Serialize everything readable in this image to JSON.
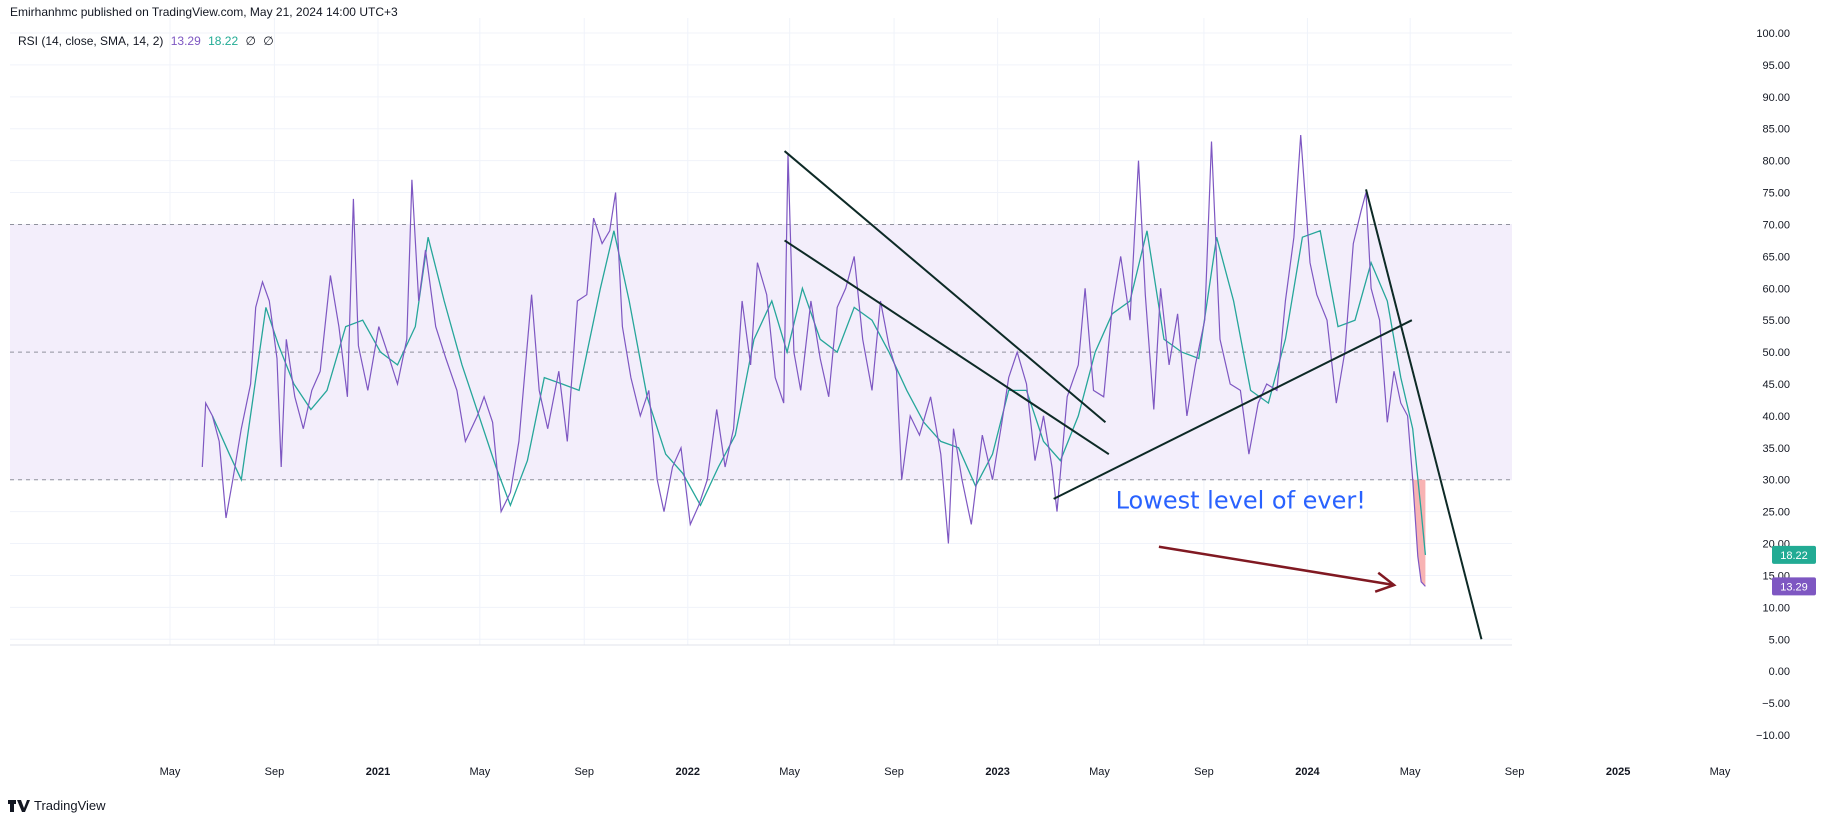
{
  "header": {
    "publisher_line": "Emirhanhmc published on TradingView.com, May 21, 2024 14:00 UTC+3"
  },
  "legend": {
    "indicator": "RSI (14, close, SMA, 14, 2)",
    "rsi_value": "13.29",
    "ma_value": "18.22",
    "extra1": "∅",
    "extra2": "∅"
  },
  "footer": {
    "brand": "TradingView"
  },
  "colors": {
    "rsi": "#7e57c2",
    "ma": "#26a69a",
    "band_fill": "#f3eefb",
    "trendline": "#0d2a26",
    "arrow": "#801922",
    "annotation": "#2962ff",
    "oversold_fill": "#f7a6a6",
    "ma_badge": "#22ab94",
    "rsi_badge": "#7e57c2"
  },
  "chart_data": {
    "type": "line",
    "title": "RSI (14, close, SMA, 14, 2)",
    "y_axis": {
      "min": -10,
      "max": 100,
      "step": 5,
      "position": "right",
      "tick_labels": [
        "100.00",
        "95.00",
        "90.00",
        "85.00",
        "80.00",
        "75.00",
        "70.00",
        "65.00",
        "60.00",
        "55.00",
        "50.00",
        "45.00",
        "40.00",
        "35.00",
        "30.00",
        "25.00",
        "20.00",
        "15.00",
        "10.00",
        "5.00",
        "0.00",
        "−5.00",
        "−10.00"
      ]
    },
    "x_axis": {
      "ticks": [
        {
          "label": "May",
          "date": "2020-05-01",
          "year": false
        },
        {
          "label": "Sep",
          "date": "2020-09-01",
          "year": false
        },
        {
          "label": "2021",
          "date": "2021-01-01",
          "year": true
        },
        {
          "label": "May",
          "date": "2021-05-01",
          "year": false
        },
        {
          "label": "Sep",
          "date": "2021-09-01",
          "year": false
        },
        {
          "label": "2022",
          "date": "2022-01-01",
          "year": true
        },
        {
          "label": "May",
          "date": "2022-05-01",
          "year": false
        },
        {
          "label": "Sep",
          "date": "2022-09-01",
          "year": false
        },
        {
          "label": "2023",
          "date": "2023-01-01",
          "year": true
        },
        {
          "label": "May",
          "date": "2023-05-01",
          "year": false
        },
        {
          "label": "Sep",
          "date": "2023-09-01",
          "year": false
        },
        {
          "label": "2024",
          "date": "2024-01-01",
          "year": true
        },
        {
          "label": "May",
          "date": "2024-05-01",
          "year": false
        },
        {
          "label": "Sep",
          "date": "2024-09-01",
          "year": false
        },
        {
          "label": "2025",
          "date": "2025-01-01",
          "year": true
        },
        {
          "label": "May",
          "date": "2025-05-01",
          "year": false
        }
      ]
    },
    "bands": {
      "upper": 70,
      "middle": 50,
      "lower": 30
    },
    "current": {
      "rsi": 13.29,
      "ma": 18.22
    },
    "series": [
      {
        "name": "RSI",
        "color": "#7e57c2",
        "points": [
          [
            "2020-06-08",
            32
          ],
          [
            "2020-06-12",
            42
          ],
          [
            "2020-06-20",
            40
          ],
          [
            "2020-06-28",
            36
          ],
          [
            "2020-07-06",
            24
          ],
          [
            "2020-07-14",
            30
          ],
          [
            "2020-07-24",
            38
          ],
          [
            "2020-08-04",
            45
          ],
          [
            "2020-08-10",
            57
          ],
          [
            "2020-08-18",
            61
          ],
          [
            "2020-08-26",
            58
          ],
          [
            "2020-09-04",
            49
          ],
          [
            "2020-09-09",
            32
          ],
          [
            "2020-09-15",
            52
          ],
          [
            "2020-09-25",
            43
          ],
          [
            "2020-10-05",
            38
          ],
          [
            "2020-10-15",
            44
          ],
          [
            "2020-10-25",
            47
          ],
          [
            "2020-11-06",
            62
          ],
          [
            "2020-11-16",
            54
          ],
          [
            "2020-11-26",
            43
          ],
          [
            "2020-12-03",
            74
          ],
          [
            "2020-12-09",
            51
          ],
          [
            "2020-12-20",
            44
          ],
          [
            "2021-01-02",
            54
          ],
          [
            "2021-01-12",
            50
          ],
          [
            "2021-01-24",
            45
          ],
          [
            "2021-02-04",
            52
          ],
          [
            "2021-02-10",
            77
          ],
          [
            "2021-02-18",
            58
          ],
          [
            "2021-02-26",
            66
          ],
          [
            "2021-03-10",
            54
          ],
          [
            "2021-03-22",
            49
          ],
          [
            "2021-04-04",
            44
          ],
          [
            "2021-04-14",
            36
          ],
          [
            "2021-04-28",
            40
          ],
          [
            "2021-05-06",
            43
          ],
          [
            "2021-05-16",
            39
          ],
          [
            "2021-05-26",
            25
          ],
          [
            "2021-06-06",
            28
          ],
          [
            "2021-06-16",
            36
          ],
          [
            "2021-07-01",
            59
          ],
          [
            "2021-07-10",
            44
          ],
          [
            "2021-07-20",
            38
          ],
          [
            "2021-08-02",
            47
          ],
          [
            "2021-08-12",
            36
          ],
          [
            "2021-08-24",
            58
          ],
          [
            "2021-09-04",
            59
          ],
          [
            "2021-09-12",
            71
          ],
          [
            "2021-09-22",
            67
          ],
          [
            "2021-10-01",
            69
          ],
          [
            "2021-10-08",
            75
          ],
          [
            "2021-10-16",
            54
          ],
          [
            "2021-10-26",
            46
          ],
          [
            "2021-11-06",
            40
          ],
          [
            "2021-11-16",
            44
          ],
          [
            "2021-11-26",
            30
          ],
          [
            "2021-12-04",
            25
          ],
          [
            "2021-12-14",
            32
          ],
          [
            "2021-12-24",
            35
          ],
          [
            "2022-01-04",
            23
          ],
          [
            "2022-01-14",
            26
          ],
          [
            "2022-01-24",
            30
          ],
          [
            "2022-02-04",
            41
          ],
          [
            "2022-02-14",
            32
          ],
          [
            "2022-02-24",
            38
          ],
          [
            "2022-03-06",
            58
          ],
          [
            "2022-03-16",
            48
          ],
          [
            "2022-03-24",
            64
          ],
          [
            "2022-04-04",
            59
          ],
          [
            "2022-04-14",
            46
          ],
          [
            "2022-04-24",
            42
          ],
          [
            "2022-04-29",
            81
          ],
          [
            "2022-05-06",
            50
          ],
          [
            "2022-05-14",
            44
          ],
          [
            "2022-05-26",
            58
          ],
          [
            "2022-06-06",
            49
          ],
          [
            "2022-06-16",
            43
          ],
          [
            "2022-06-26",
            57
          ],
          [
            "2022-07-06",
            60
          ],
          [
            "2022-07-16",
            65
          ],
          [
            "2022-07-26",
            52
          ],
          [
            "2022-08-06",
            44
          ],
          [
            "2022-08-16",
            58
          ],
          [
            "2022-08-26",
            51
          ],
          [
            "2022-09-04",
            47
          ],
          [
            "2022-09-10",
            30
          ],
          [
            "2022-09-20",
            40
          ],
          [
            "2022-10-01",
            37
          ],
          [
            "2022-10-14",
            43
          ],
          [
            "2022-10-26",
            34
          ],
          [
            "2022-11-04",
            20
          ],
          [
            "2022-11-10",
            38
          ],
          [
            "2022-11-20",
            30
          ],
          [
            "2022-12-01",
            23
          ],
          [
            "2022-12-14",
            37
          ],
          [
            "2022-12-26",
            30
          ],
          [
            "2023-01-06",
            39
          ],
          [
            "2023-01-14",
            46
          ],
          [
            "2023-01-24",
            50
          ],
          [
            "2023-02-04",
            45
          ],
          [
            "2023-02-14",
            33
          ],
          [
            "2023-02-24",
            40
          ],
          [
            "2023-03-06",
            32
          ],
          [
            "2023-03-12",
            25
          ],
          [
            "2023-03-24",
            43
          ],
          [
            "2023-04-06",
            48
          ],
          [
            "2023-04-14",
            60
          ],
          [
            "2023-04-24",
            44
          ],
          [
            "2023-05-06",
            43
          ],
          [
            "2023-05-16",
            57
          ],
          [
            "2023-05-26",
            65
          ],
          [
            "2023-06-06",
            55
          ],
          [
            "2023-06-16",
            80
          ],
          [
            "2023-06-24",
            59
          ],
          [
            "2023-07-04",
            41
          ],
          [
            "2023-07-12",
            60
          ],
          [
            "2023-07-22",
            48
          ],
          [
            "2023-08-01",
            56
          ],
          [
            "2023-08-12",
            40
          ],
          [
            "2023-08-22",
            48
          ],
          [
            "2023-09-02",
            55
          ],
          [
            "2023-09-10",
            83
          ],
          [
            "2023-09-20",
            52
          ],
          [
            "2023-10-02",
            45
          ],
          [
            "2023-10-14",
            44
          ],
          [
            "2023-10-24",
            34
          ],
          [
            "2023-11-04",
            42
          ],
          [
            "2023-11-14",
            45
          ],
          [
            "2023-11-26",
            44
          ],
          [
            "2023-12-06",
            58
          ],
          [
            "2023-12-16",
            68
          ],
          [
            "2023-12-24",
            84
          ],
          [
            "2024-01-04",
            64
          ],
          [
            "2024-01-12",
            59
          ],
          [
            "2024-01-24",
            55
          ],
          [
            "2024-02-04",
            42
          ],
          [
            "2024-02-14",
            50
          ],
          [
            "2024-02-24",
            67
          ],
          [
            "2024-03-04",
            72
          ],
          [
            "2024-03-10",
            75
          ],
          [
            "2024-03-16",
            60
          ],
          [
            "2024-03-26",
            55
          ],
          [
            "2024-04-04",
            39
          ],
          [
            "2024-04-12",
            47
          ],
          [
            "2024-04-20",
            42
          ],
          [
            "2024-04-28",
            40
          ],
          [
            "2024-05-04",
            30
          ],
          [
            "2024-05-10",
            18
          ],
          [
            "2024-05-14",
            14
          ],
          [
            "2024-05-19",
            13.29
          ]
        ]
      },
      {
        "name": "MA",
        "color": "#26a69a",
        "points": [
          [
            "2020-06-20",
            40
          ],
          [
            "2020-07-10",
            34
          ],
          [
            "2020-07-24",
            30
          ],
          [
            "2020-08-06",
            42
          ],
          [
            "2020-08-22",
            57
          ],
          [
            "2020-09-06",
            51
          ],
          [
            "2020-09-24",
            45
          ],
          [
            "2020-10-14",
            41
          ],
          [
            "2020-11-02",
            44
          ],
          [
            "2020-11-24",
            54
          ],
          [
            "2020-12-14",
            55
          ],
          [
            "2021-01-04",
            50
          ],
          [
            "2021-01-24",
            48
          ],
          [
            "2021-02-14",
            54
          ],
          [
            "2021-03-01",
            68
          ],
          [
            "2021-03-20",
            58
          ],
          [
            "2021-04-10",
            48
          ],
          [
            "2021-04-30",
            40
          ],
          [
            "2021-05-20",
            32
          ],
          [
            "2021-06-06",
            26
          ],
          [
            "2021-06-26",
            33
          ],
          [
            "2021-07-16",
            46
          ],
          [
            "2021-08-06",
            45
          ],
          [
            "2021-08-26",
            44
          ],
          [
            "2021-09-20",
            60
          ],
          [
            "2021-10-06",
            69
          ],
          [
            "2021-10-24",
            58
          ],
          [
            "2021-11-14",
            43
          ],
          [
            "2021-12-06",
            34
          ],
          [
            "2021-12-26",
            31
          ],
          [
            "2022-01-16",
            26
          ],
          [
            "2022-02-06",
            32
          ],
          [
            "2022-02-26",
            37
          ],
          [
            "2022-03-20",
            52
          ],
          [
            "2022-04-10",
            58
          ],
          [
            "2022-04-28",
            50
          ],
          [
            "2022-05-16",
            60
          ],
          [
            "2022-06-06",
            52
          ],
          [
            "2022-06-26",
            50
          ],
          [
            "2022-07-16",
            57
          ],
          [
            "2022-08-06",
            55
          ],
          [
            "2022-08-26",
            50
          ],
          [
            "2022-09-16",
            44
          ],
          [
            "2022-10-06",
            39
          ],
          [
            "2022-10-26",
            36
          ],
          [
            "2022-11-16",
            35
          ],
          [
            "2022-12-06",
            29
          ],
          [
            "2022-12-26",
            34
          ],
          [
            "2023-01-14",
            44
          ],
          [
            "2023-02-04",
            44
          ],
          [
            "2023-02-24",
            36
          ],
          [
            "2023-03-16",
            33
          ],
          [
            "2023-04-06",
            40
          ],
          [
            "2023-04-26",
            50
          ],
          [
            "2023-05-16",
            56
          ],
          [
            "2023-06-06",
            58
          ],
          [
            "2023-06-26",
            69
          ],
          [
            "2023-07-16",
            52
          ],
          [
            "2023-08-06",
            50
          ],
          [
            "2023-08-26",
            49
          ],
          [
            "2023-09-16",
            68
          ],
          [
            "2023-10-06",
            58
          ],
          [
            "2023-10-26",
            44
          ],
          [
            "2023-11-16",
            42
          ],
          [
            "2023-12-06",
            52
          ],
          [
            "2023-12-26",
            68
          ],
          [
            "2024-01-16",
            69
          ],
          [
            "2024-02-06",
            54
          ],
          [
            "2024-02-26",
            55
          ],
          [
            "2024-03-16",
            64
          ],
          [
            "2024-04-04",
            58
          ],
          [
            "2024-04-20",
            46
          ],
          [
            "2024-05-04",
            38
          ],
          [
            "2024-05-14",
            25
          ],
          [
            "2024-05-19",
            18.22
          ]
        ]
      }
    ],
    "trendlines": [
      {
        "from": [
          "2022-04-25",
          81.5
        ],
        "to": [
          "2023-05-08",
          39
        ]
      },
      {
        "from": [
          "2022-04-25",
          67.5
        ],
        "to": [
          "2023-05-12",
          34
        ]
      },
      {
        "from": [
          "2023-03-08",
          27
        ],
        "to": [
          "2024-05-03",
          55
        ]
      },
      {
        "from": [
          "2024-03-10",
          75.5
        ],
        "to": [
          "2024-07-24",
          5
        ]
      }
    ],
    "annotations": [
      {
        "text": "Lowest level of ever!",
        "at": [
          "2023-05-20",
          25.5
        ]
      }
    ],
    "arrow": {
      "from": [
        "2023-07-10",
        19.5
      ],
      "to": [
        "2024-04-12",
        13.5
      ]
    }
  }
}
